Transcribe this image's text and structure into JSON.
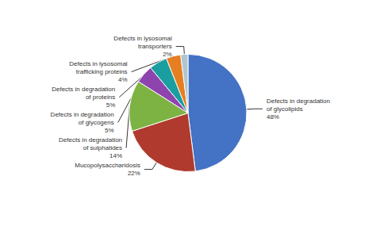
{
  "chart_data": {
    "type": "pie",
    "categories": [
      "Defects in degradation\nof glycolipids",
      "Mucopolysaccharidosis",
      "Defects in degradation\nof sulphatides",
      "Defects in degradation\nof glycogens",
      "Defects in degradation\nof proteins",
      "Defects in lysosomal\ntrafficking proteins",
      "Defects in lysosomal\ntransporters"
    ],
    "values": [
      48,
      22,
      14,
      5,
      5,
      4,
      2
    ],
    "value_labels": [
      "48%",
      "22%",
      "14%",
      "5%",
      "5%",
      "4%",
      "2%"
    ],
    "colors": [
      "#4472C4",
      "#B03A2E",
      "#7CB342",
      "#8E44AD",
      "#1A9EA0",
      "#E67E22",
      "#AEC6CF"
    ],
    "data_labels": true,
    "legend": false
  }
}
